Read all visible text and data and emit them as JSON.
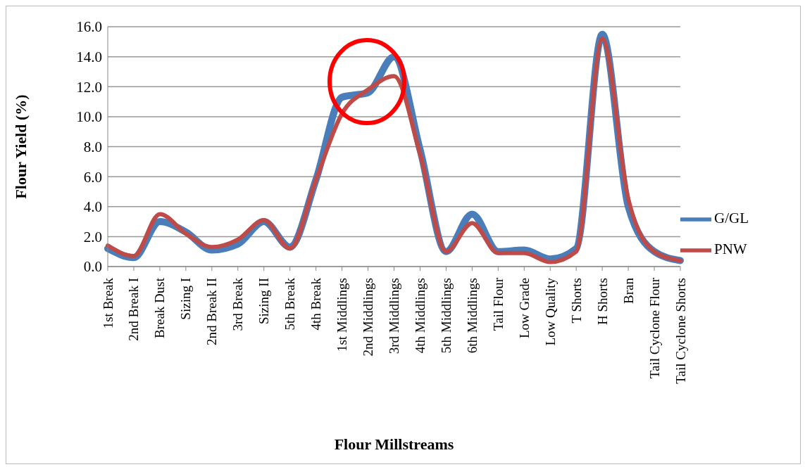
{
  "chart_data": {
    "type": "line",
    "xlabel": "Flour Millstreams",
    "ylabel": "Flour Yield (%)",
    "categories": [
      "1st Break",
      "2nd Break I",
      "Break Dust",
      "Sizing I",
      "2nd Break II",
      "3rd Break",
      "Sizing II",
      "5th Break",
      "4th Break",
      "1st Middlings",
      "2nd Middlings",
      "3rd Middlings",
      "4th Middlings",
      "5th Middlings",
      "6th Middlings",
      "Tail Flour",
      "Low Grade",
      "Low Quality",
      "T Shorts",
      "H Shorts",
      "Bran",
      "Tail Cyclone Flour",
      "Tail Cyclone Shorts"
    ],
    "series": [
      {
        "name": "G/GL",
        "color": "#4a7ebb",
        "values": [
          1.2,
          0.6,
          3.0,
          2.3,
          1.1,
          1.5,
          3.0,
          1.3,
          5.8,
          11.3,
          11.6,
          14.0,
          7.8,
          1.0,
          3.5,
          1.0,
          1.1,
          0.5,
          1.2,
          15.5,
          4.0,
          1.0,
          0.4
        ]
      },
      {
        "name": "PNW",
        "color": "#be4b48",
        "values": [
          1.4,
          0.7,
          3.5,
          2.2,
          1.3,
          1.8,
          3.1,
          1.2,
          5.8,
          10.2,
          11.8,
          12.7,
          7.5,
          1.0,
          2.9,
          0.9,
          0.9,
          0.3,
          1.0,
          15.2,
          4.5,
          1.0,
          0.4
        ]
      }
    ],
    "ylim": [
      0,
      16
    ],
    "yticks": [
      {
        "value": 0,
        "label": "0.0"
      },
      {
        "value": 2,
        "label": "2.0"
      },
      {
        "value": 4,
        "label": "4.0"
      },
      {
        "value": 6,
        "label": "6.0"
      },
      {
        "value": 8,
        "label": "8.0"
      },
      {
        "value": 10,
        "label": "10.0"
      },
      {
        "value": 12,
        "label": "12.0"
      },
      {
        "value": 14,
        "label": "14.0"
      },
      {
        "value": 16,
        "label": "16.0"
      }
    ],
    "grid": "y",
    "legend": "right",
    "marker": "none",
    "line_style": "solid"
  }
}
